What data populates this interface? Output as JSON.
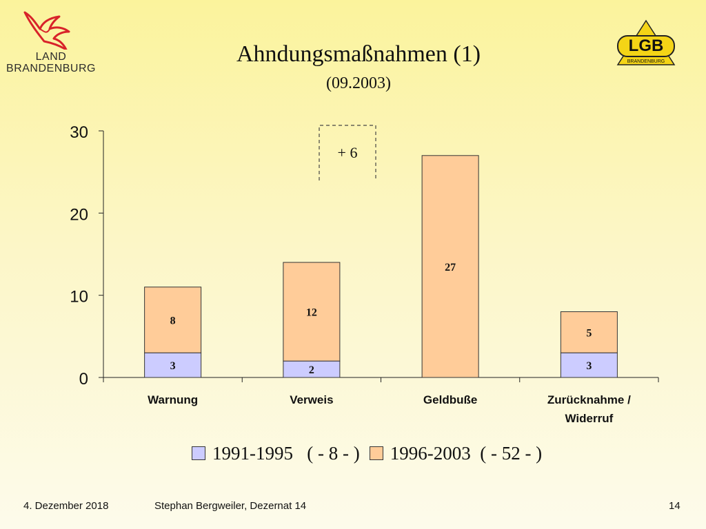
{
  "slide": {
    "title": "Ahndungsmaßnahmen (1)",
    "subtitle": "(09.2003)"
  },
  "logos": {
    "left": {
      "line1": "LAND",
      "line2": "BRANDENBURG",
      "icon": "eagle-icon",
      "color": "#d8232a"
    },
    "right": {
      "main": "LGB",
      "sub": "BRANDENBURG",
      "color": "#f4d416"
    }
  },
  "chart_data": {
    "type": "bar",
    "stacked": true,
    "categories": [
      "Warnung",
      "Verweis",
      "Geldbuße",
      "Zurücknahme / Widerruf"
    ],
    "category_lines": [
      [
        "Warnung"
      ],
      [
        "Verweis"
      ],
      [
        "Geldbuße"
      ],
      [
        "Zurücknahme /",
        "Widerruf"
      ]
    ],
    "series": [
      {
        "name": "1991-1995   ( - 8 - )",
        "values": [
          3,
          2,
          null,
          3
        ],
        "color": "#ccccff"
      },
      {
        "name": "1996-2003  ( - 52 - )",
        "values": [
          8,
          12,
          27,
          5
        ],
        "color": "#ffcc99"
      }
    ],
    "ylim": [
      0,
      30
    ],
    "yticks": [
      0,
      10,
      20,
      30
    ],
    "grid": false,
    "legend_position": "bottom",
    "annotation": {
      "text": "+ 6",
      "style": "dashed-bracket"
    }
  },
  "footer": {
    "date": "4. Dezember 2018",
    "author": "Stephan Bergweiler, Dezernat 14",
    "page": "14"
  }
}
